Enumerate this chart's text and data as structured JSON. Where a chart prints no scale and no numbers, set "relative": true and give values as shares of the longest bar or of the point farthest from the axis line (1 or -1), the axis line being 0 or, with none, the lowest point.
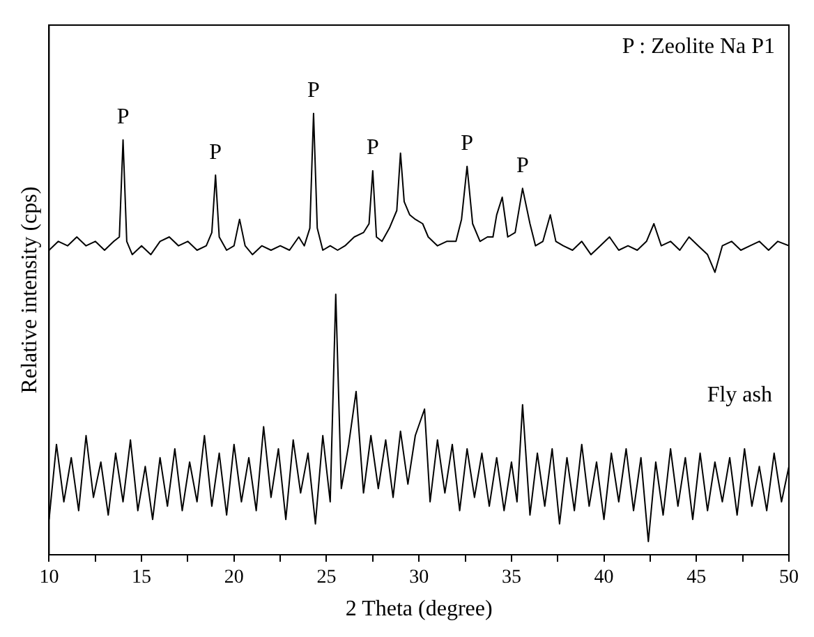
{
  "chart_data": {
    "type": "line",
    "relative": true,
    "xlabel": "2 Theta (degree)",
    "ylabel": "Relative intensity (cps)",
    "xlim": [
      10,
      50
    ],
    "xticks": [
      10,
      {
        "value": 12.5,
        "label": null
      },
      15,
      {
        "value": 17.5,
        "label": null
      },
      20,
      {
        "value": 22.5,
        "label": null
      },
      25,
      {
        "value": 27.5,
        "label": null
      },
      30,
      {
        "value": 32.5,
        "label": null
      },
      35,
      {
        "value": 37.5,
        "label": null
      },
      40,
      {
        "value": 42.5,
        "label": null
      },
      45,
      {
        "value": 47.5,
        "label": null
      },
      50
    ],
    "grid": false,
    "marker": "none",
    "line_style": "solid",
    "annotations": [
      "P : Zeolite Na P1",
      {
        "text": "P",
        "x": 14.0,
        "y": 0.94
      },
      {
        "text": "P",
        "x": 19.0,
        "y": 0.86
      },
      {
        "text": "P",
        "x": 24.3,
        "y": 1.0
      },
      {
        "text": "P",
        "x": 27.5,
        "y": 0.87
      },
      {
        "text": "P",
        "x": 32.6,
        "y": 0.88
      },
      {
        "text": "P",
        "x": 35.6,
        "y": 0.83
      }
    ],
    "series": [
      {
        "color": "#000000",
        "x": [
          10,
          10.5,
          11,
          11.5,
          12,
          12.5,
          13,
          13.5,
          13.8,
          14.0,
          14.2,
          14.5,
          15,
          15.5,
          16,
          16.5,
          17,
          17.5,
          18,
          18.5,
          18.8,
          19.0,
          19.2,
          19.6,
          20.0,
          20.3,
          20.6,
          21,
          21.5,
          22,
          22.5,
          23,
          23.5,
          23.8,
          24.1,
          24.3,
          24.5,
          24.8,
          25.2,
          25.6,
          26,
          26.5,
          27,
          27.3,
          27.5,
          27.7,
          28,
          28.4,
          28.8,
          29.0,
          29.2,
          29.5,
          29.8,
          30.2,
          30.5,
          31,
          31.5,
          32,
          32.3,
          32.6,
          32.9,
          33.3,
          33.7,
          34.0,
          34.2,
          34.5,
          34.8,
          35.2,
          35.6,
          36.0,
          36.3,
          36.7,
          37.1,
          37.4,
          37.8,
          38.3,
          38.8,
          39.3,
          39.8,
          40.3,
          40.8,
          41.3,
          41.8,
          42.3,
          42.7,
          43.1,
          43.6,
          44.1,
          44.6,
          45.1,
          45.6,
          46.0,
          46.4,
          46.9,
          47.4,
          47.9,
          48.4,
          48.9,
          49.4,
          50
        ],
        "values": [
          0.69,
          0.71,
          0.7,
          0.72,
          0.7,
          0.71,
          0.69,
          0.71,
          0.72,
          0.94,
          0.71,
          0.68,
          0.7,
          0.68,
          0.71,
          0.72,
          0.7,
          0.71,
          0.69,
          0.7,
          0.73,
          0.86,
          0.72,
          0.69,
          0.7,
          0.76,
          0.7,
          0.68,
          0.7,
          0.69,
          0.7,
          0.69,
          0.72,
          0.7,
          0.74,
          1.0,
          0.74,
          0.69,
          0.7,
          0.69,
          0.7,
          0.72,
          0.73,
          0.75,
          0.87,
          0.72,
          0.71,
          0.74,
          0.78,
          0.91,
          0.8,
          0.77,
          0.76,
          0.75,
          0.72,
          0.7,
          0.71,
          0.71,
          0.76,
          0.88,
          0.75,
          0.71,
          0.72,
          0.72,
          0.77,
          0.81,
          0.72,
          0.73,
          0.83,
          0.75,
          0.7,
          0.71,
          0.77,
          0.71,
          0.7,
          0.69,
          0.71,
          0.68,
          0.7,
          0.72,
          0.69,
          0.7,
          0.69,
          0.71,
          0.75,
          0.7,
          0.71,
          0.69,
          0.72,
          0.7,
          0.68,
          0.64,
          0.7,
          0.71,
          0.69,
          0.7,
          0.71,
          0.69,
          0.71,
          0.7
        ]
      },
      {
        "name": "Fly ash",
        "color": "#000000",
        "x": [
          10,
          10.4,
          10.8,
          11.2,
          11.6,
          12.0,
          12.4,
          12.8,
          13.2,
          13.6,
          14.0,
          14.4,
          14.8,
          15.2,
          15.6,
          16.0,
          16.4,
          16.8,
          17.2,
          17.6,
          18.0,
          18.4,
          18.8,
          19.2,
          19.6,
          20.0,
          20.4,
          20.8,
          21.2,
          21.6,
          22.0,
          22.4,
          22.8,
          23.2,
          23.6,
          24.0,
          24.4,
          24.8,
          25.2,
          25.5,
          25.8,
          26.2,
          26.6,
          27.0,
          27.4,
          27.8,
          28.2,
          28.6,
          29.0,
          29.4,
          29.8,
          30.3,
          30.6,
          31.0,
          31.4,
          31.8,
          32.2,
          32.6,
          33.0,
          33.4,
          33.8,
          34.2,
          34.6,
          35.0,
          35.3,
          35.6,
          36.0,
          36.4,
          36.8,
          37.2,
          37.6,
          38.0,
          38.4,
          38.8,
          39.2,
          39.6,
          40.0,
          40.4,
          40.8,
          41.2,
          41.6,
          42.0,
          42.4,
          42.8,
          43.2,
          43.6,
          44.0,
          44.4,
          44.8,
          45.2,
          45.6,
          46.0,
          46.4,
          46.8,
          47.2,
          47.6,
          48.0,
          48.4,
          48.8,
          49.2,
          49.6,
          50.0
        ],
        "values": [
          0.08,
          0.25,
          0.12,
          0.22,
          0.1,
          0.27,
          0.13,
          0.21,
          0.09,
          0.23,
          0.12,
          0.26,
          0.1,
          0.2,
          0.08,
          0.22,
          0.11,
          0.24,
          0.1,
          0.21,
          0.12,
          0.27,
          0.11,
          0.23,
          0.09,
          0.25,
          0.12,
          0.22,
          0.1,
          0.29,
          0.13,
          0.24,
          0.08,
          0.26,
          0.14,
          0.23,
          0.07,
          0.27,
          0.12,
          0.59,
          0.15,
          0.25,
          0.37,
          0.14,
          0.27,
          0.15,
          0.26,
          0.13,
          0.28,
          0.16,
          0.27,
          0.33,
          0.12,
          0.26,
          0.14,
          0.25,
          0.1,
          0.24,
          0.13,
          0.23,
          0.11,
          0.22,
          0.1,
          0.21,
          0.12,
          0.34,
          0.09,
          0.23,
          0.11,
          0.24,
          0.07,
          0.22,
          0.1,
          0.25,
          0.11,
          0.21,
          0.08,
          0.23,
          0.12,
          0.24,
          0.1,
          0.22,
          0.03,
          0.21,
          0.09,
          0.24,
          0.11,
          0.22,
          0.08,
          0.23,
          0.1,
          0.21,
          0.12,
          0.22,
          0.09,
          0.24,
          0.11,
          0.2,
          0.1,
          0.23,
          0.12,
          0.2
        ]
      }
    ]
  }
}
